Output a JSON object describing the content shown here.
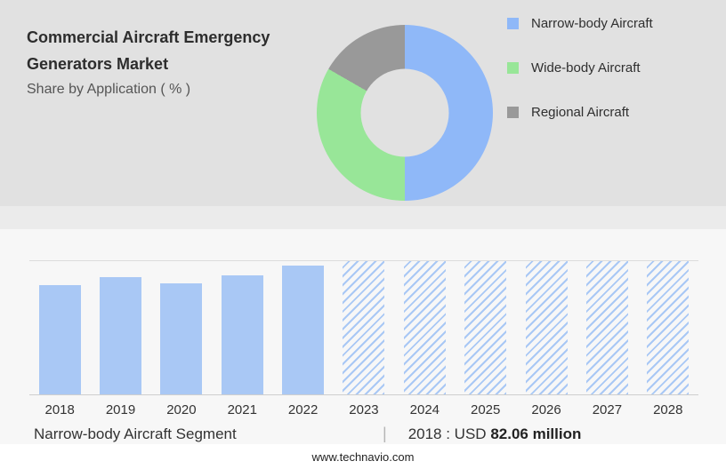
{
  "header": {
    "title_line1": "Commercial Aircraft Emergency",
    "title_line2": "Generators Market",
    "subtitle": "Share by Application ( % )"
  },
  "legend": {
    "items": [
      {
        "label": "Narrow-body Aircraft",
        "color": "#8fb8f8"
      },
      {
        "label": "Wide-body Aircraft",
        "color": "#98e698"
      },
      {
        "label": "Regional Aircraft",
        "color": "#999999"
      }
    ]
  },
  "chart_data": [
    {
      "type": "pie",
      "donut": true,
      "title": "Share by Application ( % )",
      "legend_position": "right",
      "slices": [
        {
          "label": "Narrow-body Aircraft",
          "value": 50,
          "color": "#8fb8f8"
        },
        {
          "label": "Wide-body Aircraft",
          "value": 33.3,
          "color": "#98e698"
        },
        {
          "label": "Regional Aircraft",
          "value": 16.7,
          "color": "#999999"
        }
      ]
    },
    {
      "type": "bar",
      "categories": [
        "2018",
        "2019",
        "2020",
        "2021",
        "2022",
        "2023",
        "2024",
        "2025",
        "2026",
        "2027",
        "2028"
      ],
      "values": [
        82.06,
        88,
        83.5,
        89.5,
        96.5,
        null,
        null,
        null,
        null,
        null,
        null
      ],
      "forecast": [
        false,
        false,
        false,
        false,
        false,
        true,
        true,
        true,
        true,
        true,
        true
      ],
      "ylim": [
        0,
        100
      ],
      "bar_color": "#a9c8f5",
      "forecast_style": "hatched",
      "grid": "top-and-baseline"
    }
  ],
  "caption": {
    "segment_label": "Narrow-body Aircraft Segment",
    "divider": "|",
    "value_prefix": "2018 : USD",
    "value_bold": "82.06 million"
  },
  "footer": {
    "url": "www.technavio.com"
  },
  "colors": {
    "header_bg": "#e1e1e1",
    "body_bg": "#f7f7f7",
    "footer_bg": "#ffffff",
    "accent_blue": "#8fb8f8",
    "accent_green": "#98e698",
    "accent_gray": "#999999"
  }
}
